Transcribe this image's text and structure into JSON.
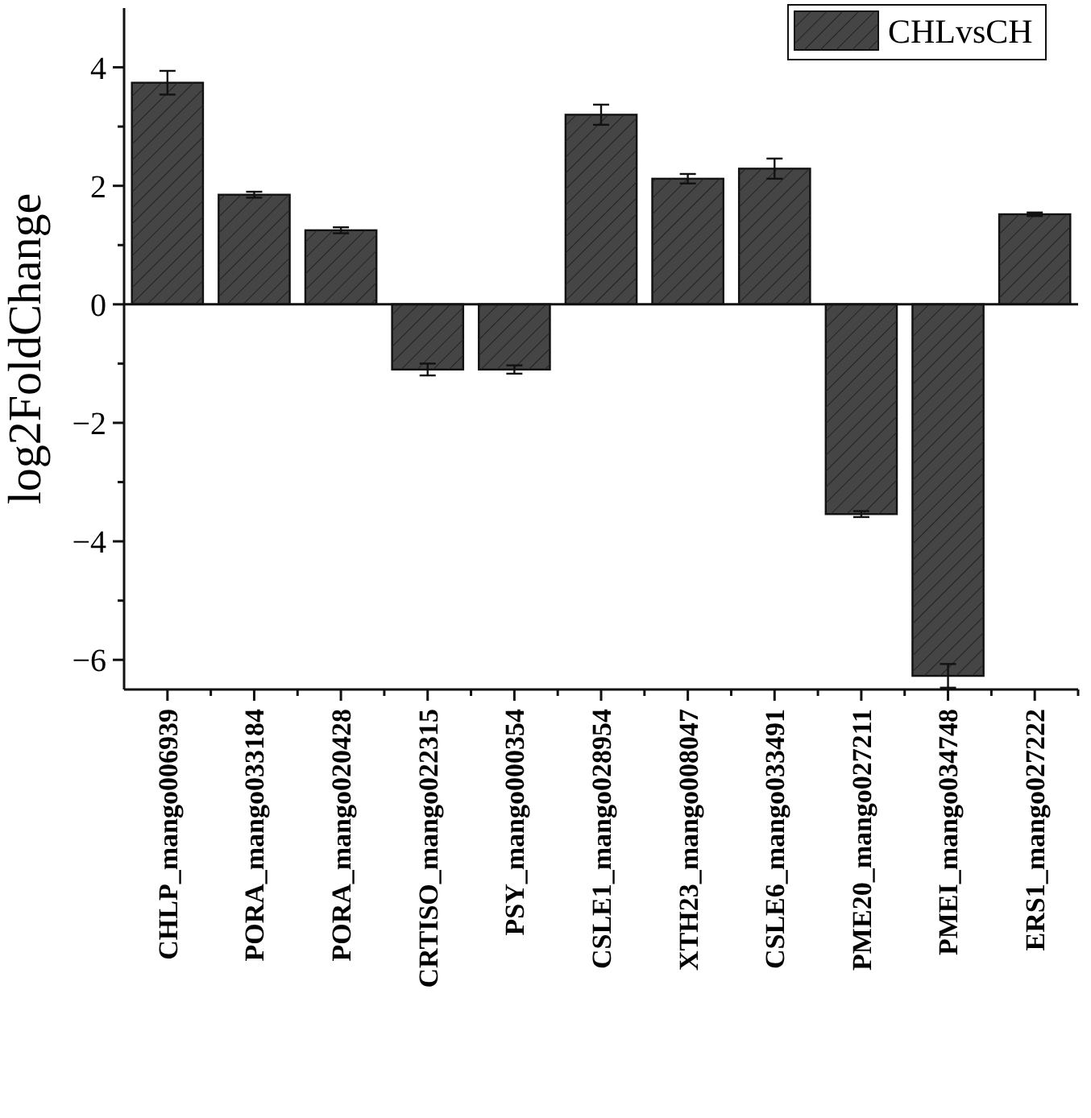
{
  "chart_data": {
    "type": "bar",
    "ylabel": "log2FoldChange",
    "categories": [
      "CHLP_mango006939",
      "PORA_mango033184",
      "PORA_mango020428",
      "CRTISO_mango022315",
      "PSY_mango000354",
      "CSLE1_mango028954",
      "XTH23_mango008047",
      "CSLE6_mango033491",
      "PME20_mango027211",
      "PMEI_mango034748",
      "ERS1_mango027222"
    ],
    "series": [
      {
        "name": "CHLvsCH",
        "color": "#454545",
        "values": [
          3.74,
          1.85,
          1.25,
          -1.1,
          -1.1,
          3.2,
          2.12,
          2.29,
          -3.54,
          -6.27,
          1.52
        ],
        "errors": [
          0.2,
          0.05,
          0.05,
          0.1,
          0.07,
          0.17,
          0.08,
          0.17,
          0.05,
          0.2,
          0.03
        ]
      }
    ],
    "ylim": [
      -6.5,
      5
    ],
    "yticks": [
      -6,
      {
        "value": -5,
        "label": null
      },
      -4,
      {
        "value": -3,
        "label": null
      },
      -2,
      {
        "value": -1,
        "label": null
      },
      0,
      {
        "value": 1,
        "label": null
      },
      2,
      {
        "value": 3,
        "label": null
      },
      4
    ],
    "legend": "top right"
  }
}
